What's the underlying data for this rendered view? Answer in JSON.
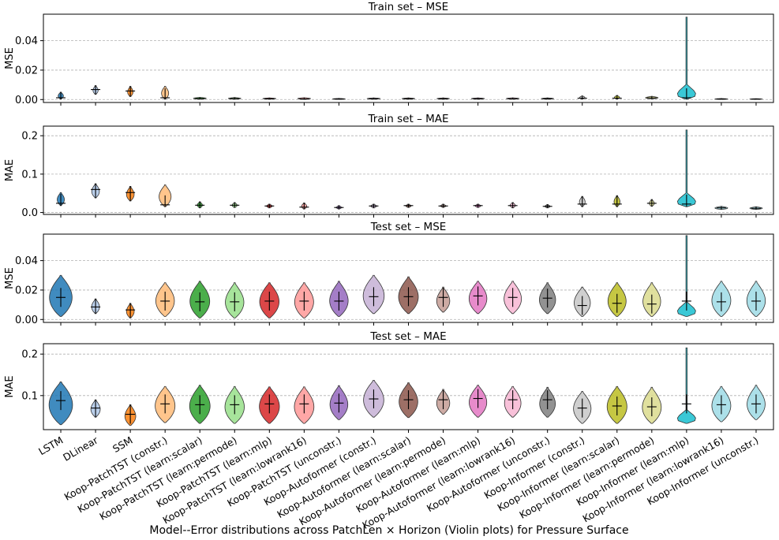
{
  "chart_data": {
    "type": "violin",
    "figure_caption": "Model--Error distributions across PatchLen × Horizon (Violin plots) for Pressure Surface",
    "categories": [
      "LSTM",
      "DLinear",
      "SSM",
      "Koop-PatchTST (constr.)",
      "Koop-PatchTST (learn:scalar)",
      "Koop-PatchTST (learn:permode)",
      "Koop-PatchTST (learn:mlp)",
      "Koop-PatchTST (learn:lowrank16)",
      "Koop-PatchTST (unconstr.)",
      "Koop-Autoformer (constr.)",
      "Koop-Autoformer (learn:scalar)",
      "Koop-Autoformer (learn:permode)",
      "Koop-Autoformer (learn:mlp)",
      "Koop-Autoformer (learn:lowrank16)",
      "Koop-Autoformer (unconstr.)",
      "Koop-Informer (constr.)",
      "Koop-Informer (learn:scalar)",
      "Koop-Informer (learn:permode)",
      "Koop-Informer (learn:mlp)",
      "Koop-Informer (learn:lowrank16)",
      "Koop-Informer (unconstr.)"
    ],
    "colors": [
      "#1f77b4",
      "#aec7e8",
      "#ff7f0e",
      "#ffbb78",
      "#2ca02c",
      "#98df8a",
      "#d62728",
      "#ff9896",
      "#9467bd",
      "#c5b0d5",
      "#8c564b",
      "#c49c94",
      "#e377c2",
      "#f7b6d2",
      "#7f7f7f",
      "#c7c7c7",
      "#bcbd22",
      "#dbdb8d",
      "#17becf",
      "#9edae5",
      "#9edae5"
    ],
    "panels": [
      {
        "title": "Train set – MSE",
        "ylabel": "MSE",
        "ylim": [
          -0.002,
          0.058
        ],
        "yticks": [
          0.0,
          0.02,
          0.04
        ],
        "yticklabels": [
          "0.00",
          "0.02",
          "0.04"
        ],
        "series": [
          {
            "min": 0.0003,
            "max": 0.005,
            "median": 0.0012,
            "wmax": 0.0012
          },
          {
            "min": 0.0035,
            "max": 0.0095,
            "median": 0.0068,
            "wmax": 0.0028
          },
          {
            "min": 0.002,
            "max": 0.009,
            "median": 0.0058,
            "wmax": 0.0025
          },
          {
            "min": 0.0002,
            "max": 0.009,
            "median": 0.0012,
            "wmax": 0.0015
          },
          {
            "min": 0.0002,
            "max": 0.0015,
            "median": 0.0006,
            "wmax": 0.0008
          },
          {
            "min": 0.0002,
            "max": 0.0014,
            "median": 0.0006,
            "wmax": 0.0008
          },
          {
            "min": 0.0002,
            "max": 0.0011,
            "median": 0.0005,
            "wmax": 0.0008
          },
          {
            "min": 0.0001,
            "max": 0.0013,
            "median": 0.0004,
            "wmax": 0.0007
          },
          {
            "min": 0.0001,
            "max": 0.0008,
            "median": 0.0003,
            "wmax": 0.0006
          },
          {
            "min": 0.0002,
            "max": 0.0011,
            "median": 0.0005,
            "wmax": 0.0008
          },
          {
            "min": 0.0002,
            "max": 0.0011,
            "median": 0.0005,
            "wmax": 0.0008
          },
          {
            "min": 0.0002,
            "max": 0.0011,
            "median": 0.0005,
            "wmax": 0.0008
          },
          {
            "min": 0.0002,
            "max": 0.0011,
            "median": 0.0005,
            "wmax": 0.0008
          },
          {
            "min": 0.0002,
            "max": 0.0012,
            "median": 0.0005,
            "wmax": 0.0008
          },
          {
            "min": 0.0002,
            "max": 0.0011,
            "median": 0.0005,
            "wmax": 0.0008
          },
          {
            "min": 0.0003,
            "max": 0.0025,
            "median": 0.0009,
            "wmax": 0.0012
          },
          {
            "min": 0.0003,
            "max": 0.0028,
            "median": 0.0009,
            "wmax": 0.0012
          },
          {
            "min": 0.0004,
            "max": 0.0022,
            "median": 0.0011,
            "wmax": 0.0012
          },
          {
            "min": 0.0002,
            "max": 0.056,
            "median": 0.0012,
            "wmax": 0.0035
          },
          {
            "min": 0.0001,
            "max": 0.0007,
            "median": 0.0003,
            "wmax": 0.0006
          },
          {
            "min": 0.0001,
            "max": 0.0006,
            "median": 0.0003,
            "wmax": 0.0006
          }
        ]
      },
      {
        "title": "Train set – MAE",
        "ylabel": "MAE",
        "ylim": [
          -0.005,
          0.225
        ],
        "yticks": [
          0.0,
          0.1,
          0.2
        ],
        "yticklabels": [
          "0.0",
          "0.1",
          "0.2"
        ],
        "series": [
          {
            "min": 0.018,
            "max": 0.052,
            "median": 0.024,
            "wmax": 0.004
          },
          {
            "min": 0.038,
            "max": 0.075,
            "median": 0.06,
            "wmax": 0.008
          },
          {
            "min": 0.03,
            "max": 0.068,
            "median": 0.052,
            "wmax": 0.007
          },
          {
            "min": 0.015,
            "max": 0.072,
            "median": 0.02,
            "wmax": 0.005
          },
          {
            "min": 0.012,
            "max": 0.028,
            "median": 0.019,
            "wmax": 0.004
          },
          {
            "min": 0.013,
            "max": 0.026,
            "median": 0.019,
            "wmax": 0.004
          },
          {
            "min": 0.012,
            "max": 0.022,
            "median": 0.017,
            "wmax": 0.004
          },
          {
            "min": 0.009,
            "max": 0.025,
            "median": 0.014,
            "wmax": 0.004
          },
          {
            "min": 0.009,
            "max": 0.018,
            "median": 0.013,
            "wmax": 0.004
          },
          {
            "min": 0.012,
            "max": 0.022,
            "median": 0.017,
            "wmax": 0.004
          },
          {
            "min": 0.013,
            "max": 0.022,
            "median": 0.018,
            "wmax": 0.004
          },
          {
            "min": 0.013,
            "max": 0.022,
            "median": 0.017,
            "wmax": 0.004
          },
          {
            "min": 0.013,
            "max": 0.022,
            "median": 0.018,
            "wmax": 0.004
          },
          {
            "min": 0.012,
            "max": 0.026,
            "median": 0.018,
            "wmax": 0.004
          },
          {
            "min": 0.012,
            "max": 0.021,
            "median": 0.016,
            "wmax": 0.004
          },
          {
            "min": 0.015,
            "max": 0.042,
            "median": 0.022,
            "wmax": 0.005
          },
          {
            "min": 0.015,
            "max": 0.044,
            "median": 0.022,
            "wmax": 0.005
          },
          {
            "min": 0.016,
            "max": 0.034,
            "median": 0.024,
            "wmax": 0.005
          },
          {
            "min": 0.015,
            "max": 0.215,
            "median": 0.022,
            "wmax": 0.008
          },
          {
            "min": 0.008,
            "max": 0.016,
            "median": 0.012,
            "wmax": 0.004
          },
          {
            "min": 0.008,
            "max": 0.015,
            "median": 0.011,
            "wmax": 0.004
          }
        ]
      },
      {
        "title": "Test set – MSE",
        "ylabel": "MSE",
        "ylim": [
          -0.002,
          0.058
        ],
        "yticks": [
          0.0,
          0.02,
          0.04
        ],
        "yticklabels": [
          "0.00",
          "0.02",
          "0.04"
        ],
        "series": [
          {
            "min": 0.002,
            "max": 0.03,
            "median": 0.015,
            "wmax": 0.0028
          },
          {
            "min": 0.004,
            "max": 0.014,
            "median": 0.0085,
            "wmax": 0.0024
          },
          {
            "min": 0.001,
            "max": 0.011,
            "median": 0.0065,
            "wmax": 0.0024
          },
          {
            "min": 0.002,
            "max": 0.025,
            "median": 0.0125,
            "wmax": 0.0028
          },
          {
            "min": 0.001,
            "max": 0.026,
            "median": 0.012,
            "wmax": 0.0028
          },
          {
            "min": 0.001,
            "max": 0.025,
            "median": 0.012,
            "wmax": 0.0028
          },
          {
            "min": 0.001,
            "max": 0.025,
            "median": 0.0125,
            "wmax": 0.0028
          },
          {
            "min": 0.001,
            "max": 0.025,
            "median": 0.0125,
            "wmax": 0.0028
          },
          {
            "min": 0.002,
            "max": 0.026,
            "median": 0.0125,
            "wmax": 0.0028
          },
          {
            "min": 0.004,
            "max": 0.03,
            "median": 0.0155,
            "wmax": 0.0028
          },
          {
            "min": 0.004,
            "max": 0.029,
            "median": 0.0155,
            "wmax": 0.0028
          },
          {
            "min": 0.005,
            "max": 0.022,
            "median": 0.015,
            "wmax": 0.0028
          },
          {
            "min": 0.004,
            "max": 0.026,
            "median": 0.016,
            "wmax": 0.0028
          },
          {
            "min": 0.004,
            "max": 0.026,
            "median": 0.015,
            "wmax": 0.0028
          },
          {
            "min": 0.004,
            "max": 0.025,
            "median": 0.0145,
            "wmax": 0.0028
          },
          {
            "min": 0.002,
            "max": 0.022,
            "median": 0.0095,
            "wmax": 0.0028
          },
          {
            "min": 0.002,
            "max": 0.025,
            "median": 0.011,
            "wmax": 0.0028
          },
          {
            "min": 0.002,
            "max": 0.025,
            "median": 0.0105,
            "wmax": 0.0028
          },
          {
            "min": 0.002,
            "max": 0.057,
            "median": 0.0125,
            "wmax": 0.0032
          },
          {
            "min": 0.002,
            "max": 0.026,
            "median": 0.012,
            "wmax": 0.0028
          },
          {
            "min": 0.002,
            "max": 0.026,
            "median": 0.0125,
            "wmax": 0.0028
          }
        ]
      },
      {
        "title": "Test set – MAE",
        "ylabel": "MAE",
        "ylim": [
          0.018,
          0.225
        ],
        "yticks": [
          0.1,
          0.2
        ],
        "yticklabels": [
          "0.1",
          "0.2"
        ],
        "series": [
          {
            "min": 0.03,
            "max": 0.133,
            "median": 0.088,
            "wmax": 0.007
          },
          {
            "min": 0.048,
            "max": 0.09,
            "median": 0.07,
            "wmax": 0.006
          },
          {
            "min": 0.028,
            "max": 0.078,
            "median": 0.055,
            "wmax": 0.006
          },
          {
            "min": 0.035,
            "max": 0.122,
            "median": 0.08,
            "wmax": 0.007
          },
          {
            "min": 0.033,
            "max": 0.125,
            "median": 0.078,
            "wmax": 0.007
          },
          {
            "min": 0.033,
            "max": 0.122,
            "median": 0.078,
            "wmax": 0.007
          },
          {
            "min": 0.033,
            "max": 0.121,
            "median": 0.08,
            "wmax": 0.007
          },
          {
            "min": 0.033,
            "max": 0.121,
            "median": 0.08,
            "wmax": 0.007
          },
          {
            "min": 0.042,
            "max": 0.124,
            "median": 0.082,
            "wmax": 0.007
          },
          {
            "min": 0.048,
            "max": 0.137,
            "median": 0.092,
            "wmax": 0.007
          },
          {
            "min": 0.047,
            "max": 0.131,
            "median": 0.09,
            "wmax": 0.007
          },
          {
            "min": 0.055,
            "max": 0.115,
            "median": 0.09,
            "wmax": 0.007
          },
          {
            "min": 0.048,
            "max": 0.125,
            "median": 0.093,
            "wmax": 0.007
          },
          {
            "min": 0.048,
            "max": 0.122,
            "median": 0.09,
            "wmax": 0.007
          },
          {
            "min": 0.048,
            "max": 0.12,
            "median": 0.09,
            "wmax": 0.007
          },
          {
            "min": 0.033,
            "max": 0.11,
            "median": 0.07,
            "wmax": 0.007
          },
          {
            "min": 0.033,
            "max": 0.122,
            "median": 0.075,
            "wmax": 0.007
          },
          {
            "min": 0.033,
            "max": 0.12,
            "median": 0.073,
            "wmax": 0.007
          },
          {
            "min": 0.033,
            "max": 0.215,
            "median": 0.08,
            "wmax": 0.008
          },
          {
            "min": 0.037,
            "max": 0.122,
            "median": 0.078,
            "wmax": 0.007
          },
          {
            "min": 0.042,
            "max": 0.125,
            "median": 0.08,
            "wmax": 0.007
          }
        ]
      }
    ]
  }
}
